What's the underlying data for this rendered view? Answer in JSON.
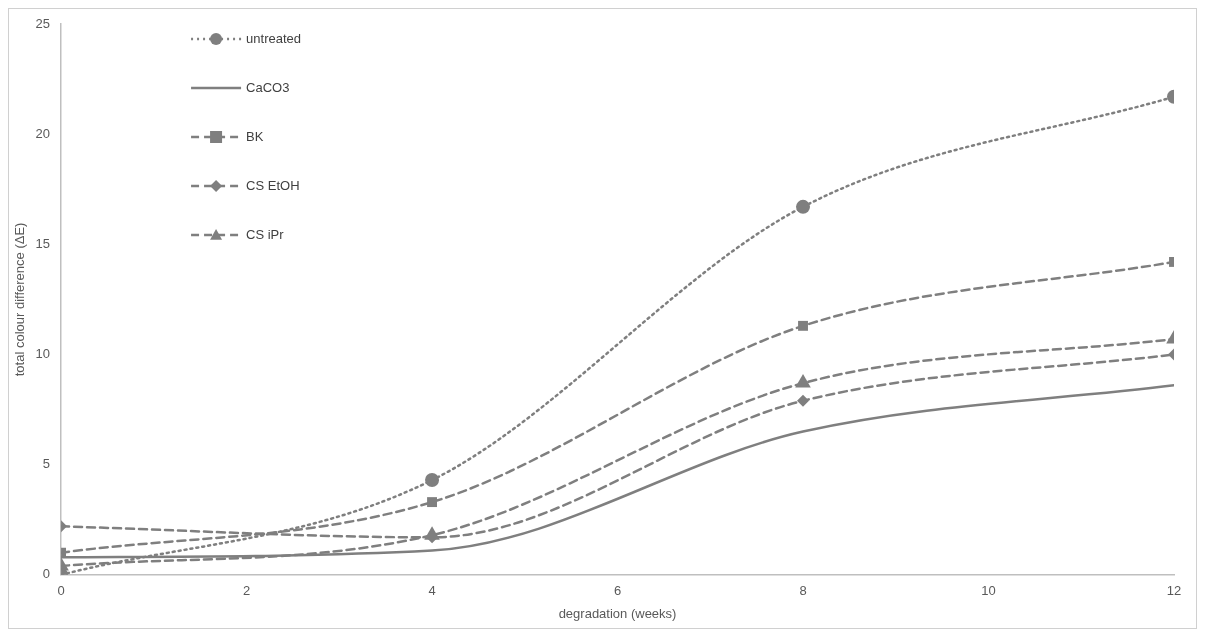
{
  "chart_data": {
    "type": "line",
    "xlabel": "degradation (weeks)",
    "ylabel": "total colour difference (ΔE)",
    "x": [
      0,
      4,
      8,
      12
    ],
    "series": [
      {
        "name": "untreated",
        "color": "#7f7f7f",
        "values": [
          0,
          4.3,
          16.7,
          21.7
        ],
        "marker": "circle",
        "line_style": "dotted"
      },
      {
        "name": "CaCO3",
        "color": "#7f7f7f",
        "values": [
          0.8,
          1.1,
          6.5,
          8.6
        ],
        "marker": "none",
        "line_style": "solid"
      },
      {
        "name": "BK",
        "color": "#7f7f7f",
        "values": [
          1.0,
          3.3,
          11.3,
          14.2
        ],
        "marker": "square",
        "line_style": "dashed"
      },
      {
        "name": "CS EtOH",
        "color": "#7f7f7f",
        "values": [
          2.2,
          1.7,
          7.9,
          10.0
        ],
        "marker": "diamond",
        "line_style": "dashed"
      },
      {
        "name": "CS iPr",
        "color": "#7f7f7f",
        "values": [
          0.4,
          1.8,
          8.7,
          10.7
        ],
        "marker": "triangle",
        "line_style": "dashed"
      }
    ],
    "xlim": [
      0,
      12
    ],
    "xticks": [
      0,
      2,
      4,
      6,
      8,
      10,
      12
    ],
    "ylim": [
      0,
      25
    ],
    "yticks": [
      0,
      5,
      10,
      15,
      20,
      25
    ],
    "grid": false,
    "legend": "top left"
  }
}
